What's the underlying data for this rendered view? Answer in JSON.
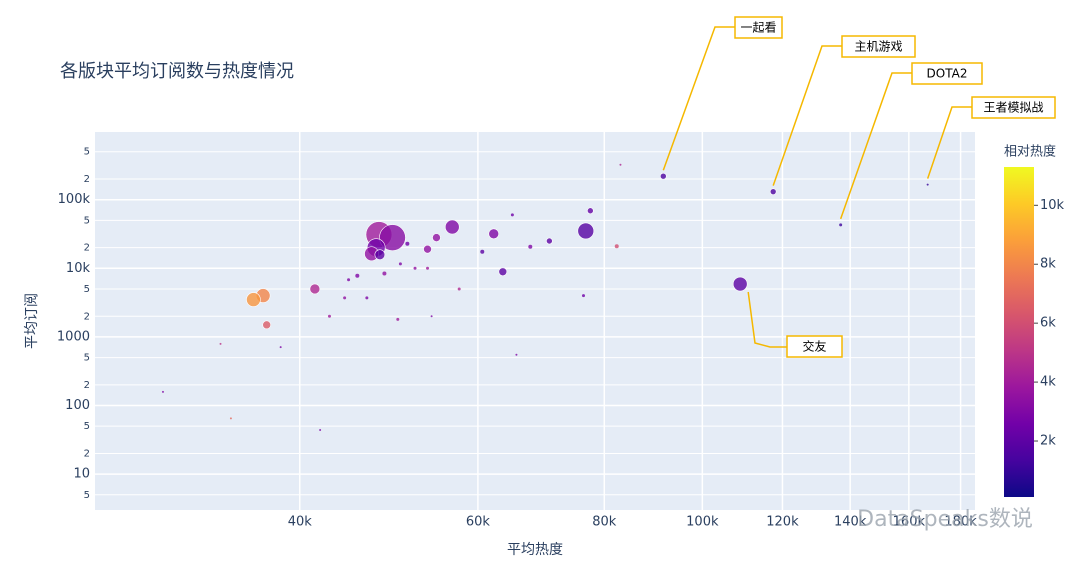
{
  "chart_data": {
    "type": "scatter",
    "title": "各版块平均订阅数与热度情况",
    "x_label": "平均热度",
    "y_label": "平均订阅",
    "log_x": true,
    "log_y": true,
    "grid": true,
    "xlim": [
      25100,
      186000
    ],
    "xticks": [
      {
        "value": 40000,
        "label": "40k"
      },
      {
        "value": 60000,
        "label": "60k"
      },
      {
        "value": 80000,
        "label": "80k"
      },
      {
        "value": 100000,
        "label": "100k"
      },
      {
        "value": 120000,
        "label": "120k"
      },
      {
        "value": 140000,
        "label": "140k"
      },
      {
        "value": 160000,
        "label": "160k"
      },
      {
        "value": 180000,
        "label": "180k"
      }
    ],
    "ylim": [
      3,
      970000
    ],
    "yticks": [
      5,
      10,
      {
        "value": 20,
        "label": "2"
      },
      {
        "value": 50,
        "label": "5"
      },
      100,
      {
        "value": 200,
        "label": "2"
      },
      {
        "value": 500,
        "label": "5"
      },
      1000,
      {
        "value": 2000,
        "label": "2"
      },
      {
        "value": 5000,
        "label": "5"
      },
      {
        "value": 10000,
        "label": "10k"
      },
      {
        "value": 20000,
        "label": "2"
      },
      {
        "value": 50000,
        "label": "5"
      },
      {
        "value": 100000,
        "label": "100k"
      },
      {
        "value": 200000,
        "label": "2"
      },
      {
        "value": 500000,
        "label": "5"
      }
    ],
    "colorbar_title": "相对热度",
    "clim": [
      100,
      11300
    ],
    "cticks": [
      {
        "value": 2000,
        "label": "2k"
      },
      {
        "value": 4000,
        "label": "4k"
      },
      {
        "value": 6000,
        "label": "6k"
      },
      {
        "value": 8000,
        "label": "8k"
      },
      {
        "value": 10000,
        "label": "10k"
      }
    ],
    "colorscale": [
      "#0d0887",
      "#46039f",
      "#7201a8",
      "#9c179e",
      "#bd3786",
      "#d8576b",
      "#ed7953",
      "#fb9f3a",
      "#fdca26",
      "#f0f921"
    ],
    "series": [
      {
        "x": [
          91500,
          117500,
          137000,
          167000,
          109000,
          76700,
          77500,
          70600,
          62200,
          56600,
          54600,
          53500,
          47900,
          49400,
          47600,
          47100,
          48000,
          41400,
          36800,
          36000,
          37100,
          63500,
          64900,
          67600,
          82300,
          83000,
          76300,
          60600,
          51100,
          34200,
          33400,
          38300,
          45600,
          48500,
          44700,
          52000,
          53500,
          50300,
          57500,
          42800,
          44300,
          46600,
          50000,
          29300,
          41900,
          65500,
          54000
        ],
        "values": [
          220000,
          131000,
          43000,
          166000,
          5900,
          35000,
          69000,
          25000,
          31800,
          40000,
          28000,
          19000,
          31000,
          28000,
          20000,
          16300,
          15800,
          5000,
          4000,
          3500,
          1500,
          8900,
          60000,
          20600,
          21000,
          323000,
          4000,
          17400,
          22800,
          65,
          790,
          710,
          7800,
          8400,
          6800,
          10000,
          10000,
          11600,
          5000,
          2000,
          3700,
          3700,
          1800,
          158,
          44,
          550,
          2000
        ],
        "heat": [
          1500,
          1500,
          1200,
          1000,
          2000,
          1800,
          2200,
          2000,
          3000,
          3000,
          3500,
          3500,
          4000,
          3200,
          2500,
          3500,
          2000,
          4500,
          8000,
          8500,
          6500,
          2000,
          2500,
          3000,
          6000,
          4500,
          2500,
          2000,
          2500,
          7000,
          5000,
          3000,
          3000,
          3500,
          3000,
          3500,
          4000,
          3000,
          4500,
          4000,
          3500,
          3000,
          4000,
          3000,
          3000,
          3000,
          3000
        ],
        "sizes": [
          3,
          3,
          1.5,
          1,
          7,
          8,
          3,
          3,
          5,
          7,
          4,
          4,
          13,
          13,
          9,
          7,
          5,
          5,
          7,
          7,
          4,
          4,
          1.5,
          2,
          2,
          1,
          1.5,
          2,
          2,
          1,
          1,
          1,
          2,
          2,
          1.5,
          1.5,
          1.5,
          1.5,
          1.5,
          1.5,
          1.5,
          1.5,
          1.5,
          1,
          1,
          1,
          1
        ]
      }
    ],
    "annotations": [
      {
        "text": "一起看",
        "point": 0
      },
      {
        "text": "主机游戏",
        "point": 1
      },
      {
        "text": "DOTA2",
        "point": 2
      },
      {
        "text": "王者模拟战",
        "point": 3
      },
      {
        "text": "交友",
        "point": 4
      }
    ],
    "watermark": "DataSpeaks数说"
  }
}
